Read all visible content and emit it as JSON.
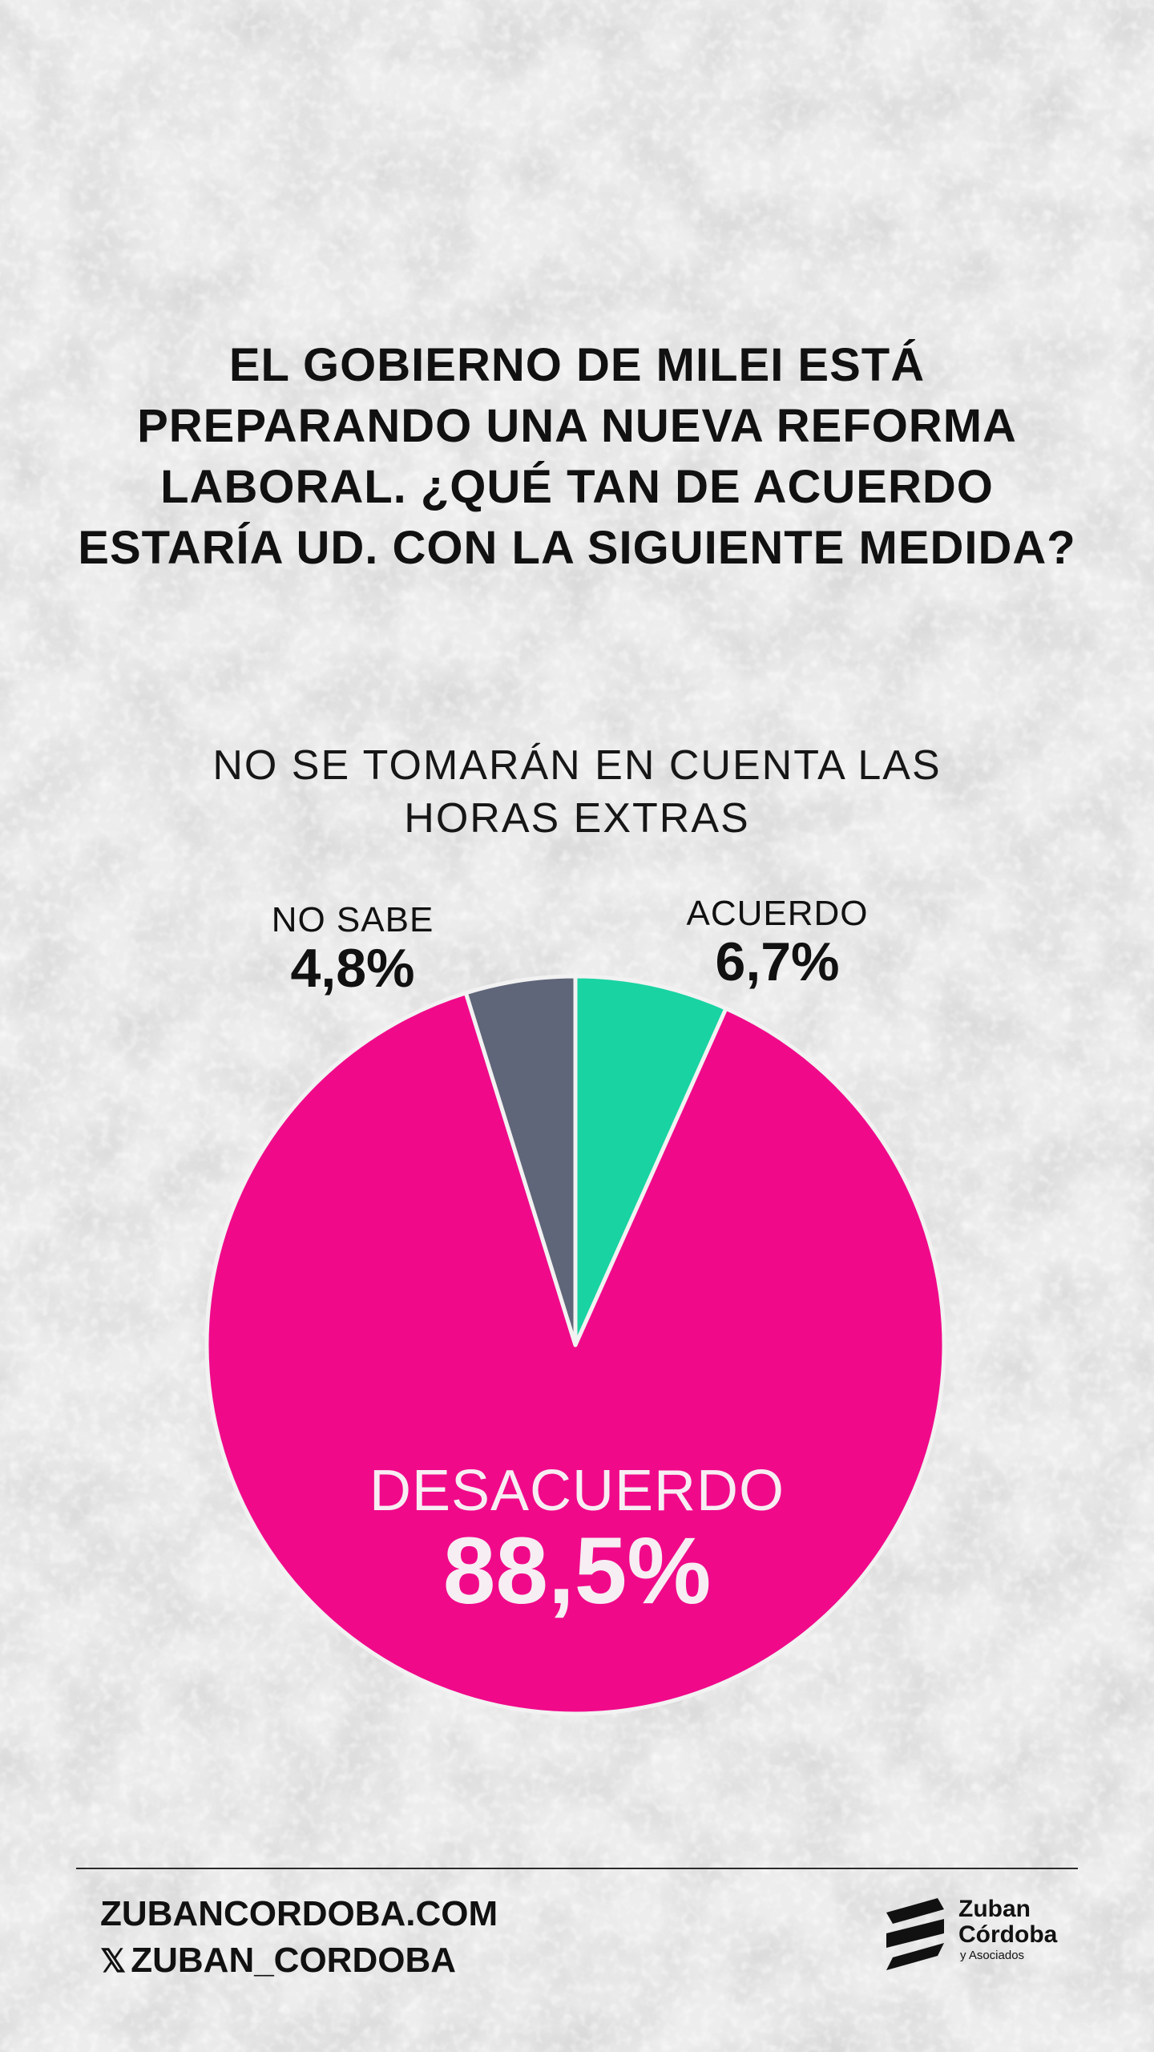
{
  "question": "EL GOBIERNO DE MILEI ESTÁ PREPARANDO UNA NUEVA REFORMA LABORAL. ¿QUÉ TAN DE ACUERDO ESTARÍA UD. CON LA SIGUIENTE MEDIDA?",
  "chart_data": {
    "type": "pie",
    "title": "NO SE TOMARÁN EN CUENTA LAS HORAS EXTRAS",
    "slices": [
      {
        "label": "ACUERDO",
        "value": 6.7,
        "display": "6,7%",
        "color": "#19d3a2"
      },
      {
        "label": "DESACUERDO",
        "value": 88.5,
        "display": "88,5%",
        "color": "#f00a8a"
      },
      {
        "label": "NO SABE",
        "value": 4.8,
        "display": "4,8%",
        "color": "#5f6679"
      }
    ],
    "start": "12 o'clock, clockwise",
    "slice_border_color": "#f2f2f2"
  },
  "footer": {
    "website": "ZUBANCORDOBA.COM",
    "x_icon": "x-logo-icon",
    "handle": "ZUBAN_CORDOBA"
  },
  "logo": {
    "line1": "Zuban",
    "line2": "Córdoba",
    "line3": "y Asociados"
  }
}
